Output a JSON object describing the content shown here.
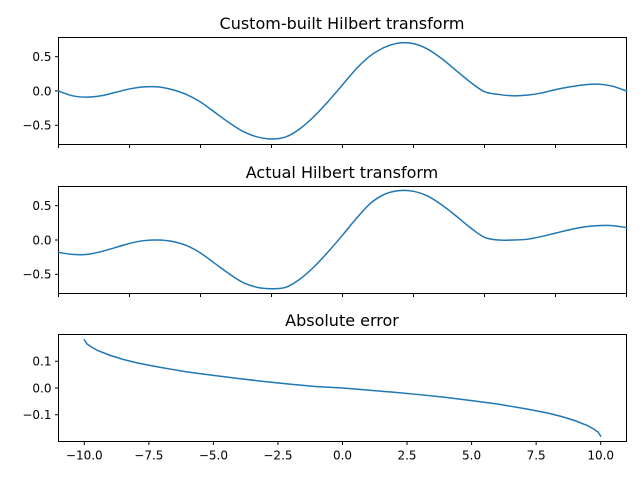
{
  "chart_data": [
    {
      "type": "line",
      "title": "Custom-built Hilbert transform",
      "xlabel": "",
      "ylabel": "",
      "xlim": [
        -10.0,
        10.0
      ],
      "ylim": [
        -0.78,
        0.78
      ],
      "xticks": [
        -10.0,
        -7.5,
        -5.0,
        -2.5,
        0.0,
        2.5,
        5.0,
        7.5,
        10.0
      ],
      "xtick_labels_shown": false,
      "yticks": [
        -0.5,
        0.0,
        0.5
      ],
      "ytick_labels": [
        "−0.5",
        "0.0",
        "0.5"
      ],
      "grid": false,
      "series": [
        {
          "color": "#1f77b4",
          "x": [
            -10.0,
            -9.5,
            -9.0,
            -8.5,
            -8.0,
            -7.5,
            -7.0,
            -6.5,
            -6.0,
            -5.5,
            -5.0,
            -4.5,
            -4.0,
            -3.5,
            -3.0,
            -2.5,
            -2.0,
            -1.5,
            -1.0,
            -0.5,
            0.0,
            0.5,
            1.0,
            1.5,
            2.0,
            2.5,
            3.0,
            3.5,
            4.0,
            4.5,
            5.0,
            5.5,
            6.0,
            6.5,
            7.0,
            7.5,
            8.0,
            8.5,
            9.0,
            9.5,
            10.0
          ],
          "y": [
            0.0,
            -0.07,
            -0.09,
            -0.07,
            -0.02,
            0.03,
            0.06,
            0.06,
            0.02,
            -0.05,
            -0.16,
            -0.31,
            -0.46,
            -0.59,
            -0.67,
            -0.7,
            -0.67,
            -0.55,
            -0.37,
            -0.15,
            0.09,
            0.33,
            0.52,
            0.64,
            0.7,
            0.69,
            0.61,
            0.47,
            0.3,
            0.13,
            -0.01,
            -0.05,
            -0.07,
            -0.06,
            -0.03,
            0.02,
            0.06,
            0.09,
            0.1,
            0.07,
            0.0
          ]
        }
      ]
    },
    {
      "type": "line",
      "title": "Actual Hilbert transform",
      "xlabel": "",
      "ylabel": "",
      "xlim": [
        -10.0,
        10.0
      ],
      "ylim": [
        -0.78,
        0.78
      ],
      "xticks": [
        -10.0,
        -7.5,
        -5.0,
        -2.5,
        0.0,
        2.5,
        5.0,
        7.5,
        10.0
      ],
      "xtick_labels_shown": false,
      "yticks": [
        -0.5,
        0.0,
        0.5
      ],
      "ytick_labels": [
        "−0.5",
        "0.0",
        "0.5"
      ],
      "grid": false,
      "series": [
        {
          "color": "#1f77b4",
          "x": [
            -10.0,
            -9.5,
            -9.0,
            -8.5,
            -8.0,
            -7.5,
            -7.0,
            -6.5,
            -6.0,
            -5.5,
            -5.0,
            -4.5,
            -4.0,
            -3.5,
            -3.0,
            -2.5,
            -2.0,
            -1.5,
            -1.0,
            -0.5,
            0.0,
            0.5,
            1.0,
            1.5,
            2.0,
            2.5,
            3.0,
            3.5,
            4.0,
            4.5,
            5.0,
            5.5,
            6.0,
            6.5,
            7.0,
            7.5,
            8.0,
            8.5,
            9.0,
            9.5,
            10.0
          ],
          "y": [
            -0.18,
            -0.21,
            -0.21,
            -0.17,
            -0.11,
            -0.05,
            -0.01,
            0.0,
            -0.02,
            -0.08,
            -0.19,
            -0.34,
            -0.49,
            -0.62,
            -0.69,
            -0.71,
            -0.69,
            -0.57,
            -0.39,
            -0.17,
            0.07,
            0.32,
            0.54,
            0.67,
            0.72,
            0.71,
            0.64,
            0.51,
            0.35,
            0.18,
            0.04,
            0.0,
            0.0,
            0.01,
            0.05,
            0.1,
            0.15,
            0.19,
            0.21,
            0.21,
            0.18
          ]
        }
      ]
    },
    {
      "type": "line",
      "title": "Absolute error",
      "xlabel": "",
      "ylabel": "",
      "xlim": [
        -11.0,
        11.0
      ],
      "ylim": [
        -0.2,
        0.2
      ],
      "xticks": [
        -10.0,
        -7.5,
        -5.0,
        -2.5,
        0.0,
        2.5,
        5.0,
        7.5,
        10.0
      ],
      "xtick_labels": [
        "−10.0",
        "−7.5",
        "−5.0",
        "−2.5",
        "0.0",
        "2.5",
        "5.0",
        "7.5",
        "10.0"
      ],
      "yticks": [
        -0.1,
        0.0,
        0.1
      ],
      "ytick_labels": [
        "−0.1",
        "0.0",
        "0.1"
      ],
      "grid": false,
      "series": [
        {
          "color": "#1f77b4",
          "x": [
            -10.0,
            -9.9,
            -9.7,
            -9.5,
            -9.0,
            -8.5,
            -8.0,
            -7.5,
            -7.0,
            -6.5,
            -6.0,
            -5.0,
            -4.0,
            -3.0,
            -2.0,
            -1.0,
            0.0,
            1.0,
            2.0,
            3.0,
            4.0,
            5.0,
            6.0,
            6.5,
            7.0,
            7.5,
            8.0,
            8.5,
            9.0,
            9.5,
            9.7,
            9.9,
            10.0
          ],
          "y": [
            0.18,
            0.165,
            0.152,
            0.141,
            0.122,
            0.107,
            0.095,
            0.085,
            0.076,
            0.068,
            0.06,
            0.047,
            0.035,
            0.024,
            0.014,
            0.005,
            0.0,
            -0.008,
            -0.016,
            -0.025,
            -0.035,
            -0.047,
            -0.06,
            -0.068,
            -0.076,
            -0.085,
            -0.095,
            -0.107,
            -0.122,
            -0.141,
            -0.152,
            -0.165,
            -0.18
          ]
        }
      ]
    }
  ]
}
